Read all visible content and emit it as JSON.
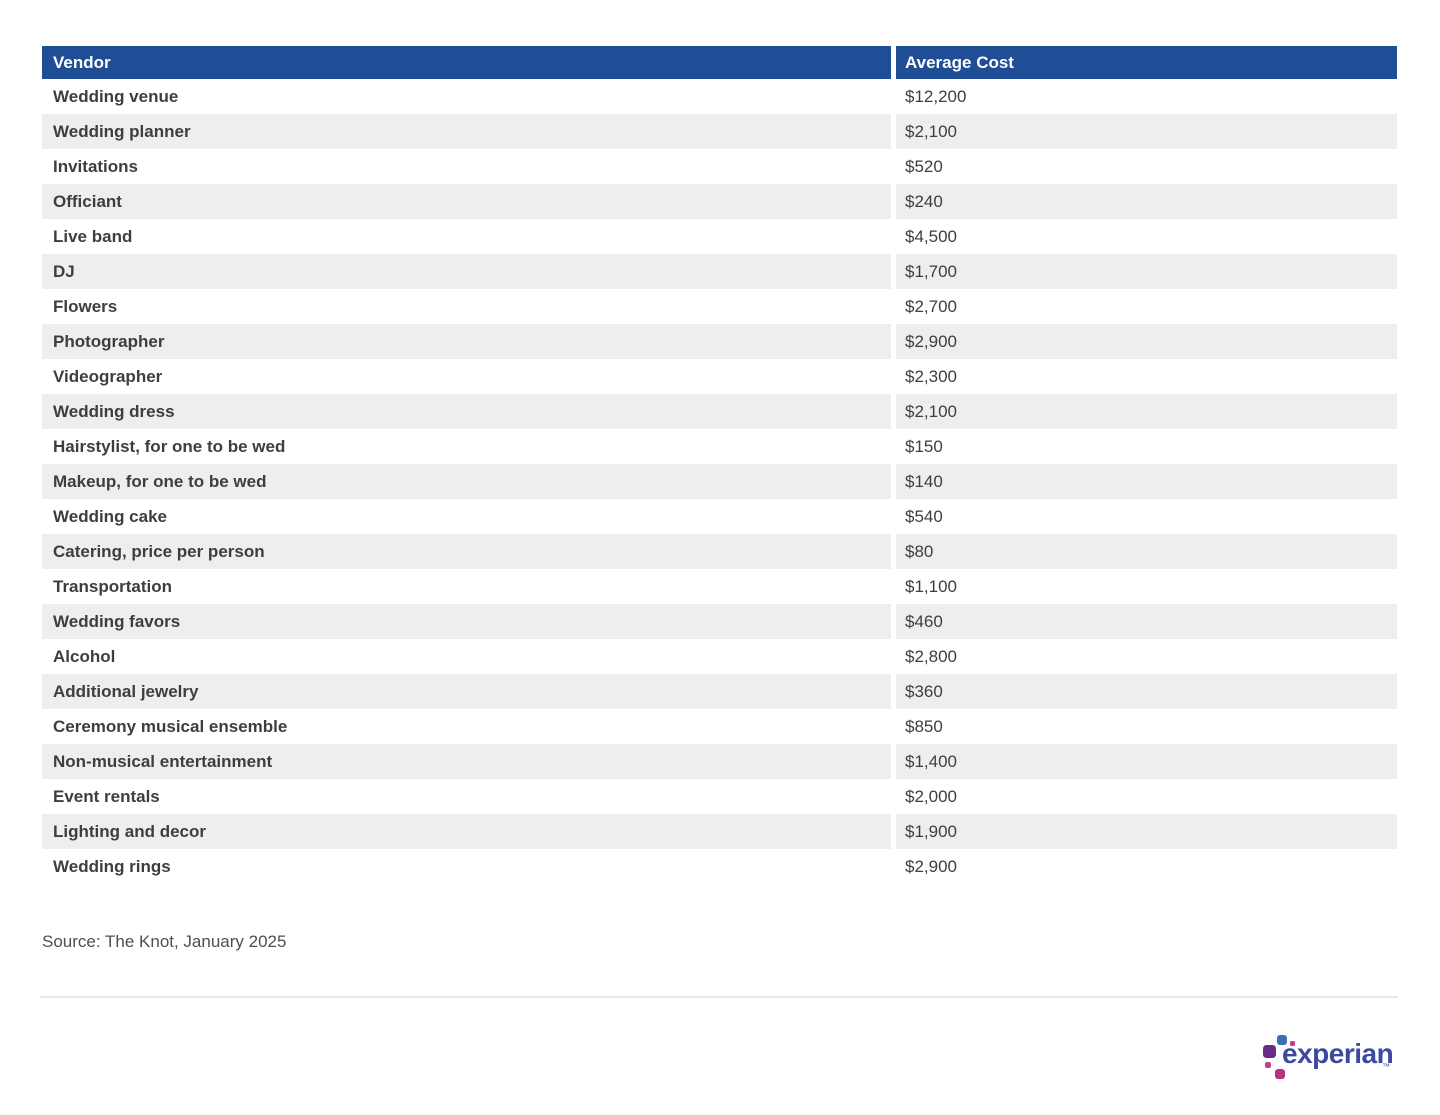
{
  "chart_data": {
    "type": "table",
    "columns": [
      "Vendor",
      "Average Cost"
    ],
    "rows": [
      {
        "vendor": "Wedding venue",
        "cost": "$12,200"
      },
      {
        "vendor": "Wedding planner",
        "cost": "$2,100"
      },
      {
        "vendor": "Invitations",
        "cost": "$520"
      },
      {
        "vendor": "Officiant",
        "cost": "$240"
      },
      {
        "vendor": "Live band",
        "cost": "$4,500"
      },
      {
        "vendor": "DJ",
        "cost": "$1,700"
      },
      {
        "vendor": "Flowers",
        "cost": "$2,700"
      },
      {
        "vendor": "Photographer",
        "cost": "$2,900"
      },
      {
        "vendor": "Videographer",
        "cost": "$2,300"
      },
      {
        "vendor": "Wedding dress",
        "cost": "$2,100"
      },
      {
        "vendor": "Hairstylist, for one to be wed",
        "cost": "$150"
      },
      {
        "vendor": "Makeup, for one to be wed",
        "cost": "$140"
      },
      {
        "vendor": "Wedding cake",
        "cost": "$540"
      },
      {
        "vendor": "Catering, price per person",
        "cost": "$80"
      },
      {
        "vendor": "Transportation",
        "cost": "$1,100"
      },
      {
        "vendor": "Wedding favors",
        "cost": "$460"
      },
      {
        "vendor": "Alcohol",
        "cost": "$2,800"
      },
      {
        "vendor": "Additional jewelry",
        "cost": "$360"
      },
      {
        "vendor": "Ceremony musical ensemble",
        "cost": "$850"
      },
      {
        "vendor": "Non-musical entertainment",
        "cost": "$1,400"
      },
      {
        "vendor": "Event rentals",
        "cost": "$2,000"
      },
      {
        "vendor": "Lighting and decor",
        "cost": "$1,900"
      },
      {
        "vendor": "Wedding rings",
        "cost": "$2,900"
      }
    ]
  },
  "source": "Source: The Knot, January 2025",
  "logo": {
    "brand": "experian",
    "trademark": "™"
  },
  "colors": {
    "header_bg": "#1f4e96",
    "header_text": "#ffffff",
    "row_alt_bg": "#eeeeee",
    "body_text": "#3e3e3e",
    "source_text": "#4f4f4f",
    "logo_text": "#3b4a9d",
    "logo_blue": "#406eb3",
    "logo_purple": "#692b87",
    "logo_magenta": "#ba2f7d"
  }
}
